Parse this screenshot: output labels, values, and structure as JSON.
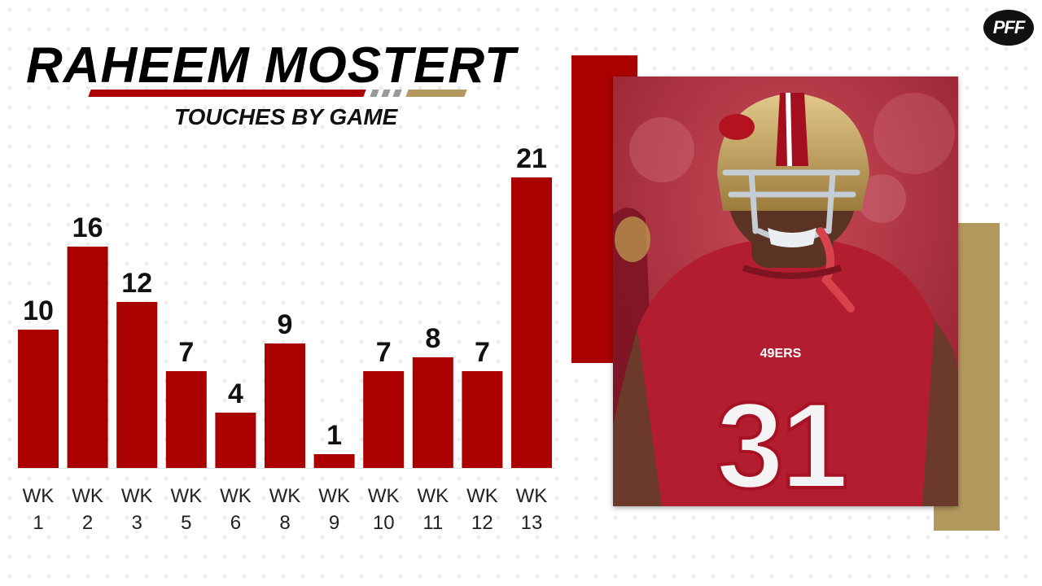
{
  "header": {
    "title": "RAHEEM MOSTERT",
    "subtitle": "TOUCHES BY GAME",
    "logo_text": "PFF"
  },
  "colors": {
    "bar": "#aa0000",
    "accent_red": "#aa0000",
    "accent_gold": "#b3995d",
    "text": "#111111"
  },
  "photo": {
    "jersey_number": "31",
    "chest_text": "49ERS"
  },
  "chart_data": {
    "type": "bar",
    "title": "RAHEEM MOSTERT",
    "subtitle": "TOUCHES BY GAME",
    "categories": [
      "WK 1",
      "WK 2",
      "WK 3",
      "WK 5",
      "WK 6",
      "WK 8",
      "WK 9",
      "WK 10",
      "WK 11",
      "WK 12",
      "WK 13"
    ],
    "values": [
      10,
      16,
      12,
      7,
      4,
      9,
      1,
      7,
      8,
      7,
      21
    ],
    "xlabel": "",
    "ylabel": "",
    "ylim": [
      0,
      21
    ],
    "grid": false,
    "legend": "none",
    "data_labels": true
  }
}
